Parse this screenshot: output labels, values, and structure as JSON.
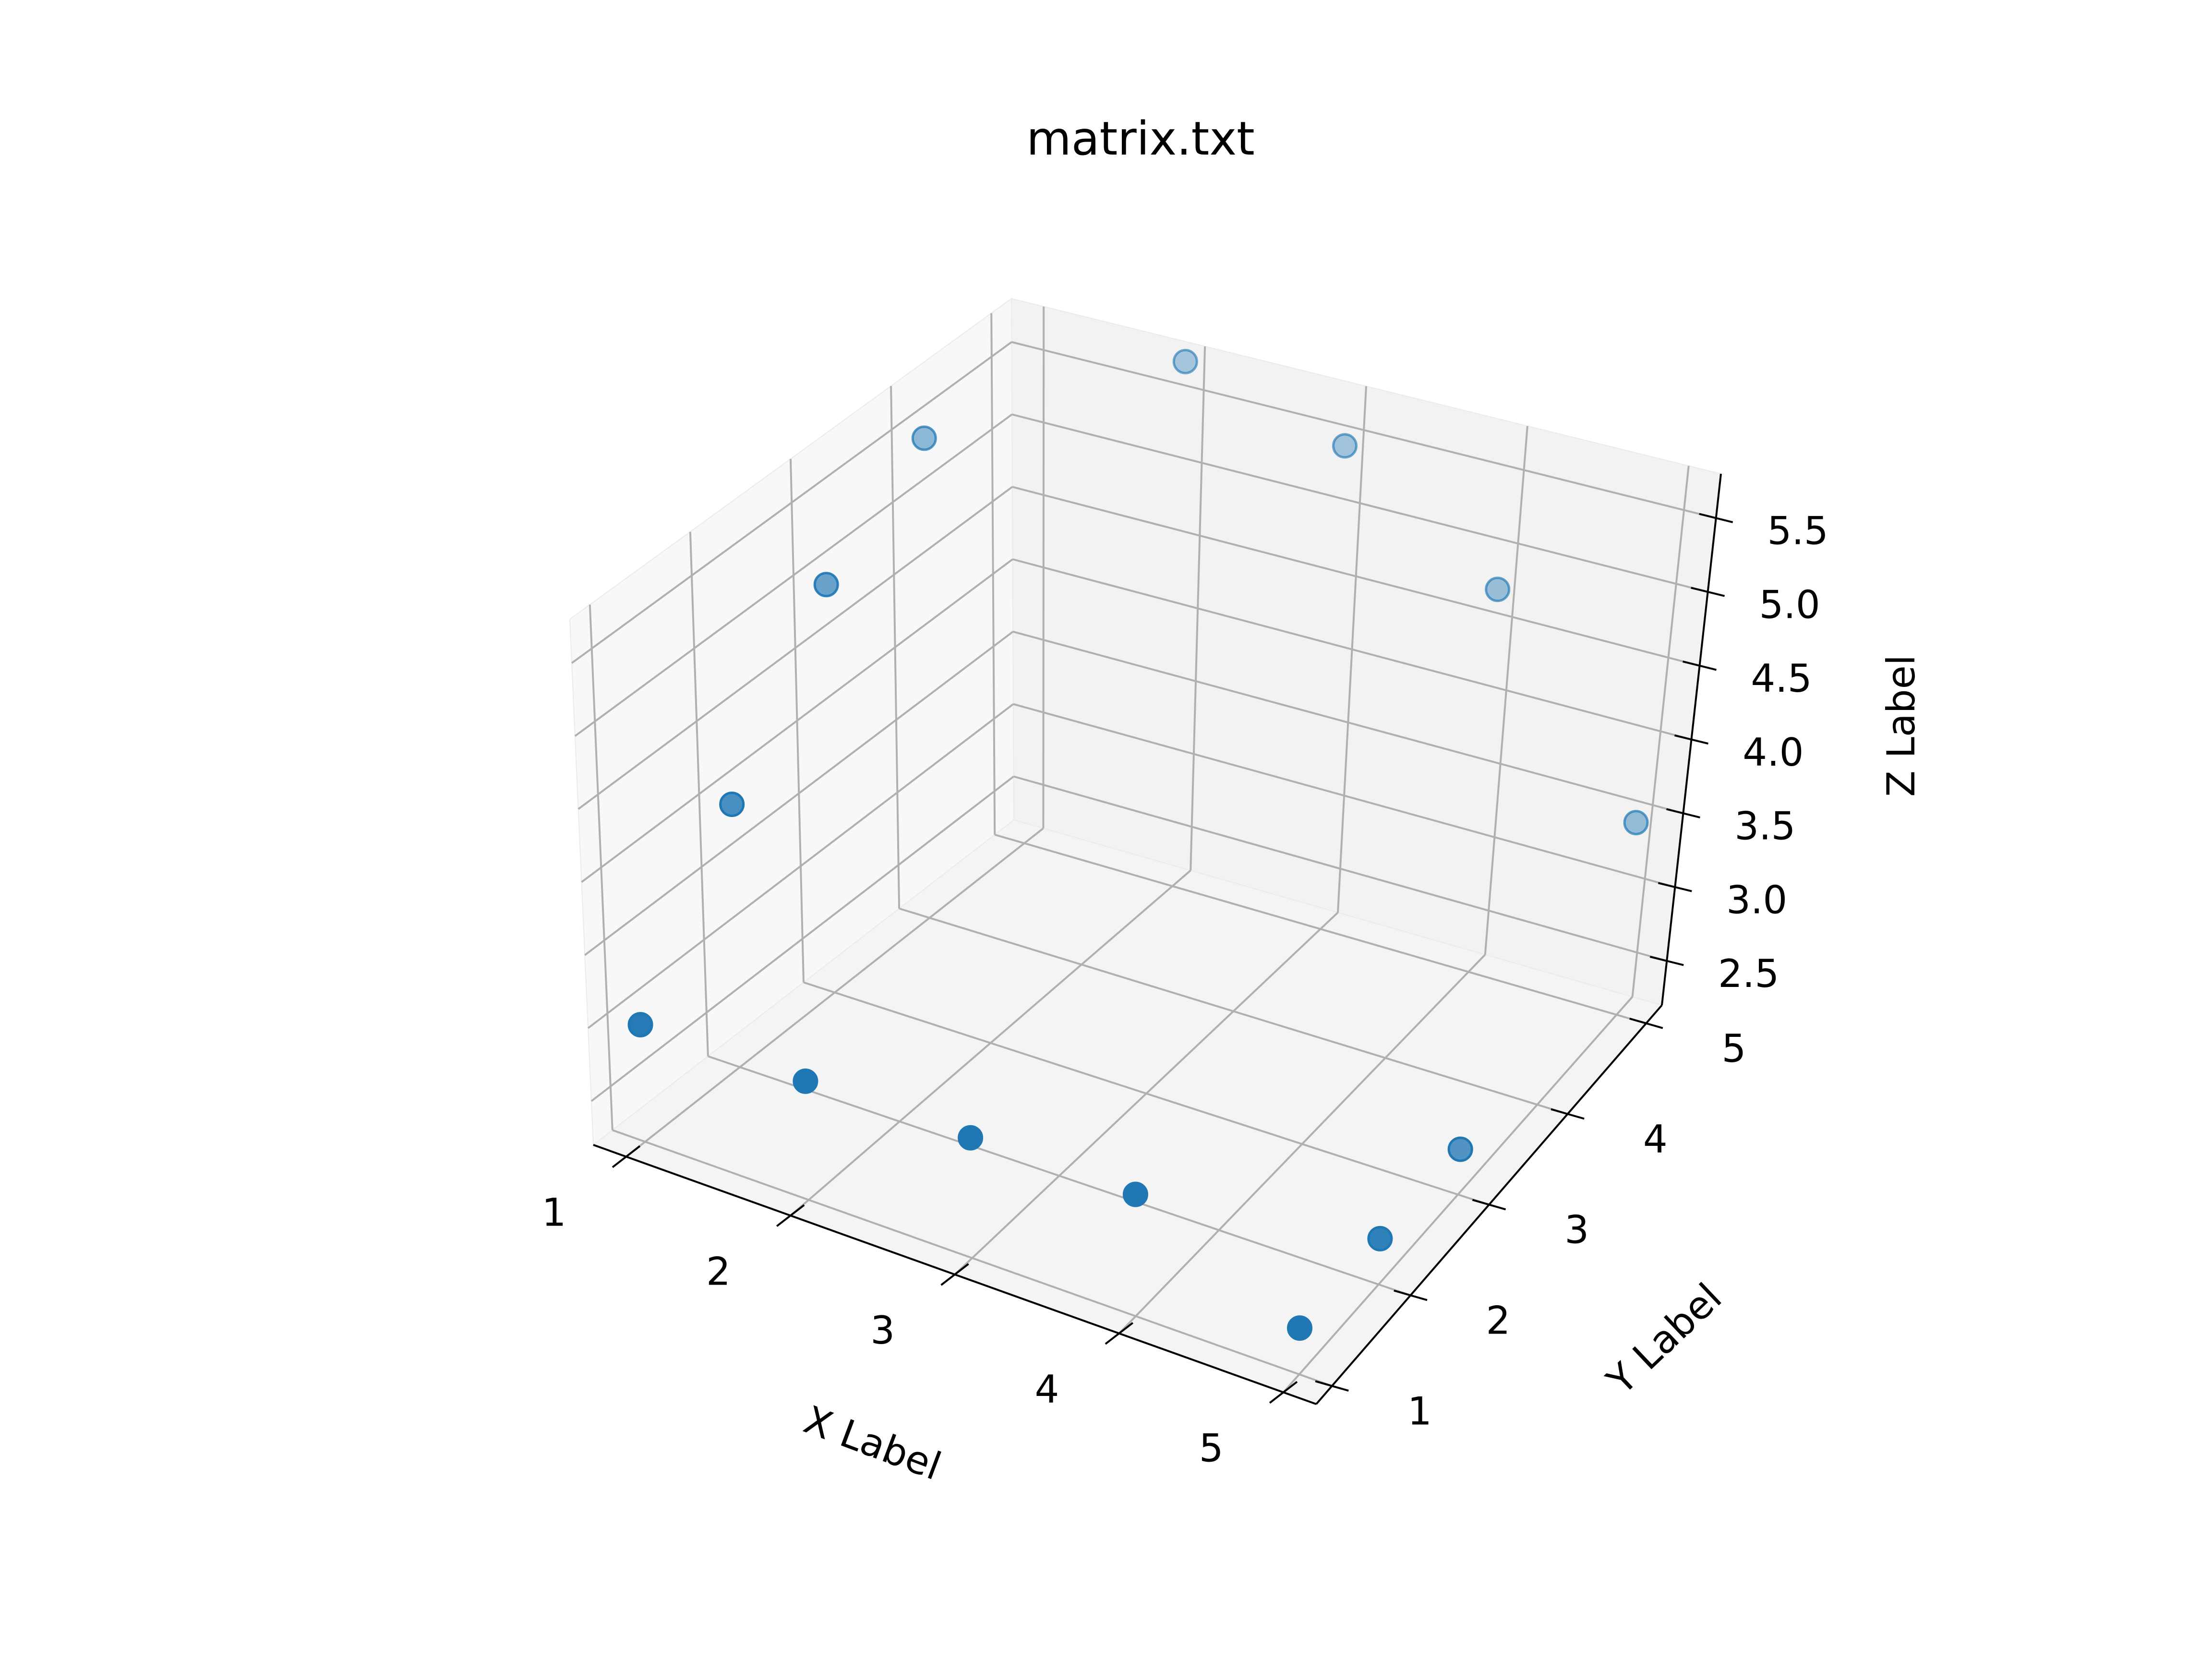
{
  "chart_data": {
    "type": "scatter3d",
    "title": "matrix.txt",
    "xlabel": "X Label",
    "ylabel": "Y Label",
    "zlabel": "Z Label",
    "x_ticks": [
      "1",
      "2",
      "3",
      "4",
      "5"
    ],
    "y_ticks": [
      "1",
      "2",
      "3",
      "4",
      "5"
    ],
    "z_ticks": [
      "2.5",
      "3.0",
      "3.5",
      "4.0",
      "4.5",
      "5.0",
      "5.5"
    ],
    "xlim": [
      0.8,
      5.2
    ],
    "ylim": [
      0.8,
      5.2
    ],
    "zlim": [
      2.2,
      5.8
    ],
    "grid": true,
    "color": "#1f77b4",
    "points": [
      {
        "x": 1,
        "y": 1,
        "z": 3
      },
      {
        "x": 1,
        "y": 2,
        "z": 4
      },
      {
        "x": 1,
        "y": 3,
        "z": 5
      },
      {
        "x": 1,
        "y": 4,
        "z": 5.5
      },
      {
        "x": 2,
        "y": 1,
        "z": 3
      },
      {
        "x": 2,
        "y": 5,
        "z": 5.8
      },
      {
        "x": 3,
        "y": 1,
        "z": 3
      },
      {
        "x": 3,
        "y": 5,
        "z": 5.5
      },
      {
        "x": 4,
        "y": 1,
        "z": 3
      },
      {
        "x": 4,
        "y": 5,
        "z": 4.8
      },
      {
        "x": 5,
        "y": 1,
        "z": 2.5
      },
      {
        "x": 5,
        "y": 2,
        "z": 2.5
      },
      {
        "x": 5,
        "y": 3,
        "z": 2.5
      },
      {
        "x": 5,
        "y": 5,
        "z": 3.5
      }
    ]
  }
}
